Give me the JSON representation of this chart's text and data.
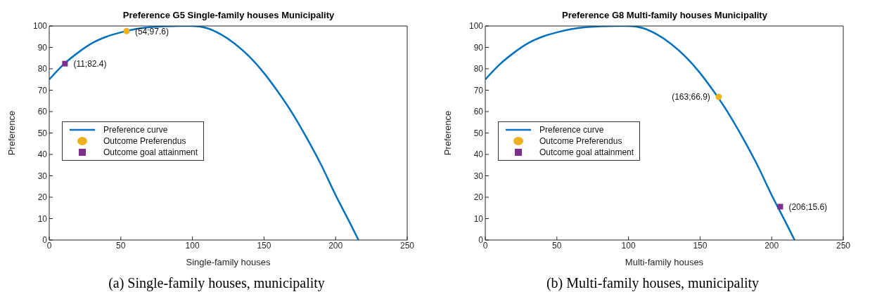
{
  "chart_data": [
    {
      "type": "line",
      "title": "Preference G5 Single-family houses Municipality",
      "xlabel": "Single-family houses",
      "ylabel": "Preference",
      "xlim": [
        0,
        250
      ],
      "xticks": [
        0,
        50,
        100,
        150,
        200,
        250
      ],
      "ylim": [
        0,
        100
      ],
      "yticks": [
        0,
        10,
        20,
        30,
        40,
        50,
        60,
        70,
        80,
        90,
        100
      ],
      "grid": false,
      "legend": "left",
      "series": [
        {
          "name": "Preference curve",
          "color": "#0072bd",
          "x": [
            0,
            10,
            20,
            30,
            40,
            50,
            60,
            70,
            80,
            90,
            100,
            110,
            120,
            130,
            140,
            150,
            160,
            170,
            180,
            190,
            200,
            210,
            216
          ],
          "values": [
            75,
            82,
            87.5,
            92,
            95,
            97,
            98.5,
            99.4,
            99.8,
            100,
            100,
            99,
            96,
            91.5,
            85.5,
            78,
            69,
            59,
            47.5,
            35,
            21,
            8,
            0
          ]
        },
        {
          "name": "Outcome Preferendus",
          "type": "scatter",
          "marker": "circle",
          "color": "#edb120",
          "x": [
            54
          ],
          "values": [
            97.6
          ]
        },
        {
          "name": "Outcome goal attainment",
          "type": "scatter",
          "marker": "square",
          "color": "#7e2f8e",
          "x": [
            11
          ],
          "values": [
            82.4
          ]
        }
      ],
      "annotations": [
        {
          "text": "(54;97.6)",
          "x": 54,
          "y": 97.6
        },
        {
          "text": "(11;82.4)",
          "x": 11,
          "y": 82.4
        },
        "(a) Single-family houses, municipality"
      ]
    },
    {
      "type": "line",
      "title": "Preference G8 Multi-family houses Municipality",
      "xlabel": "Multi-family houses",
      "ylabel": "Preference",
      "xlim": [
        0,
        250
      ],
      "xticks": [
        0,
        50,
        100,
        150,
        200,
        250
      ],
      "ylim": [
        0,
        100
      ],
      "yticks": [
        0,
        10,
        20,
        30,
        40,
        50,
        60,
        70,
        80,
        90,
        100
      ],
      "grid": false,
      "legend": "left",
      "series": [
        {
          "name": "Preference curve",
          "color": "#0072bd",
          "x": [
            0,
            10,
            20,
            30,
            40,
            50,
            60,
            70,
            80,
            90,
            100,
            110,
            120,
            130,
            140,
            150,
            160,
            170,
            180,
            190,
            200,
            210,
            216
          ],
          "values": [
            75,
            82,
            87.5,
            92,
            95,
            97,
            98.5,
            99.4,
            99.8,
            100,
            100,
            99,
            96,
            91.5,
            85.5,
            78,
            69,
            59,
            47.5,
            35,
            21,
            8,
            0
          ]
        },
        {
          "name": "Outcome Preferendus",
          "type": "scatter",
          "marker": "circle",
          "color": "#edb120",
          "x": [
            163
          ],
          "values": [
            66.9
          ]
        },
        {
          "name": "Outcome goal attainment",
          "type": "scatter",
          "marker": "square",
          "color": "#7e2f8e",
          "x": [
            206
          ],
          "values": [
            15.6
          ]
        }
      ],
      "annotations": [
        {
          "text": "(163;66.9)",
          "x": 163,
          "y": 66.9
        },
        {
          "text": "(206;15.6)",
          "x": 206,
          "y": 15.6
        },
        "(b) Multi-family houses, municipality"
      ]
    }
  ]
}
